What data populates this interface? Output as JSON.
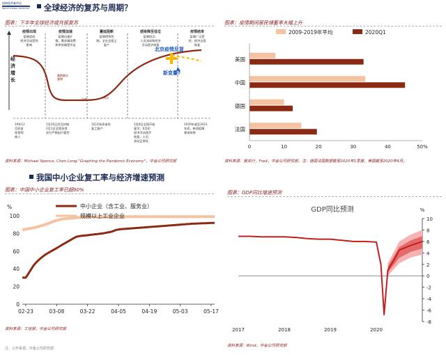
{
  "logo": {
    "line1": "机构投资者评论",
    "line2": "INSTITUTIONAL INVESTOR"
  },
  "sections": {
    "top": "全球经济的复苏与周期？",
    "bottom": "我国中小企业复工率与经济增速预测"
  },
  "panel1": {
    "subtitle": "图表：下半年全球经济或共振复苏",
    "y_label": "经济增长",
    "stages": [
      {
        "title": "疫情出现",
        "desc": "疫情造成\n经济活动受到\n影响"
      },
      {
        "title": "疫情加速",
        "desc": "疫情迅速扩\n散，需求端消费\n和供给端受冲击"
      },
      {
        "title": "蔓延阻断",
        "desc": "疫情得到控\n制，全社会复工\n复产"
      },
      {
        "title": "感染降至低位",
        "desc": "疫情拐点，\n人员流动和经济\n活动逐步恢复"
      },
      {
        "title": "疫情结束",
        "desc": "疫情广泛受\n控，经济全面\n恢复"
      }
    ],
    "annotations": [
      "美欧确诊\n激增",
      "见底",
      "拐点",
      "北京疫情反复",
      "新变量?"
    ],
    "events": [
      "19年12\n月初出\n现首例\n病人",
      "1月20日武汉封城\n2月1日全国多地\n实行严格出行管控",
      "3月开始多省份\n复工复产",
      "5月8日全国开始\n复学，6月初\n经济活动逐步\n恢复，人员\n流动正常化",
      "2020年或至2021\n年初，新冠疫情\n基本结束"
    ],
    "source": "资料来源：Michael Spence, Chen Long,\"Graphing the Pandemic Economy\"，中金公司研究部"
  },
  "panel2": {
    "subtitle": "图表：疫情期间居民储蓄率大幅上升",
    "source": "资料来源：致央行，Fred，中金公司研究部，注：德国法国数据截至2020年1季度，美国截至2020年4月。",
    "colors": {
      "avg": "#f5c3a2",
      "q1": "#8b2a12"
    }
  },
  "panel3": {
    "subtitle": "图表：中国中小企业复工率已超90%",
    "source": "资料来源：工信部，中金公司研究部",
    "colors": {
      "sme": "#8b2a12",
      "large": "#f5c3a2"
    }
  },
  "panel4": {
    "subtitle": "图表：GDP同比增速预测",
    "source": "资料来源：Wind，中金公司研究部",
    "colors": {
      "line": "#c21e1e",
      "band1": "#f7b3b3",
      "band2": "#e46a6a"
    }
  },
  "footer": "注：公开来源，中金公司研究部",
  "chart_data": [
    {
      "type": "bar",
      "orientation": "horizontal",
      "categories": [
        "美国",
        "中国",
        "德国",
        "法国"
      ],
      "series": [
        {
          "name": "2009-2019年平均",
          "values": [
            7.5,
            33.5,
            10,
            15
          ]
        },
        {
          "name": "2020Q1",
          "values": [
            33,
            45,
            12.5,
            19.5
          ]
        }
      ],
      "xlim": [
        0,
        50
      ],
      "x_ticks": [
        0,
        10,
        20,
        30,
        40,
        50
      ],
      "x_tick_labels": [
        "0",
        "10",
        "20",
        "30",
        "40",
        "50%"
      ],
      "legend": "top"
    },
    {
      "type": "line",
      "ylabel": "%",
      "x_tick_labels": [
        "02-23",
        "03-08",
        "03-22",
        "04-05",
        "04-19",
        "05-03",
        "05-17"
      ],
      "y_ticks": [
        0,
        20,
        40,
        60,
        80,
        100
      ],
      "ylim": [
        0,
        100
      ],
      "series": [
        {
          "name": "中小企业（含工业、服务业）",
          "x": [
            0,
            0.5,
            1,
            1.5,
            2,
            3,
            4,
            5,
            6,
            7,
            8,
            9,
            10,
            11,
            12,
            13,
            14,
            15,
            16,
            17,
            18,
            19,
            20,
            21,
            22,
            23,
            24,
            24.5,
            25,
            26,
            27,
            28,
            29,
            30,
            31,
            32,
            33,
            34,
            35,
            36,
            37,
            38,
            39,
            40,
            41,
            42,
            43,
            44,
            45,
            46,
            47,
            48,
            49,
            50,
            51,
            52,
            53,
            54,
            55,
            56,
            57,
            58,
            59,
            60,
            61,
            62,
            63,
            64,
            65,
            66,
            67,
            68,
            69,
            70,
            71,
            72,
            73,
            74,
            75,
            76,
            77,
            78,
            79,
            80,
            81,
            82,
            83,
            84
          ],
          "values": [
            30,
            30,
            30,
            30,
            32,
            36,
            40,
            44,
            47,
            49.5,
            52,
            54,
            56,
            57.5,
            59,
            60.5,
            62,
            63.5,
            65,
            66.5,
            68,
            69.5,
            71,
            72.5,
            74,
            75.5,
            76.5,
            76.8,
            77,
            77.3,
            77.6,
            77.9,
            78.2,
            78.5,
            78.8,
            79.1,
            79.4,
            79.7,
            80,
            80.5,
            81,
            81.5,
            82,
            83,
            84,
            84.5,
            84.8,
            85,
            85.2,
            85.4,
            85.6,
            85.8,
            86,
            86.2,
            86.4,
            86.6,
            86.8,
            87,
            87.2,
            87.4,
            87.6,
            87.8,
            88,
            88.2,
            88.4,
            88.6,
            88.8,
            89,
            89.2,
            89.4,
            89.6,
            89.8,
            90,
            90.2,
            90.4,
            90.6,
            90.8,
            91,
            91.1,
            91.2,
            91.3,
            91.4,
            91.5,
            91.6,
            91.7,
            91.8,
            91.9,
            92
          ]
        },
        {
          "name": "规模以上工业企业",
          "x": [
            0,
            2,
            4,
            6,
            8,
            10,
            12,
            14,
            16,
            18,
            20,
            22,
            24,
            26,
            28,
            30,
            32,
            34,
            36,
            40,
            44,
            48,
            52,
            56,
            60,
            64,
            68,
            72,
            76,
            80,
            84
          ],
          "values": [
            84,
            85,
            86,
            87,
            88.5,
            90,
            92,
            94,
            95.5,
            96.5,
            97,
            97.5,
            98,
            98.3,
            98.5,
            98.7,
            98.9,
            99,
            99,
            99,
            99,
            99,
            99,
            99,
            99,
            99,
            99,
            99,
            99,
            99,
            99
          ]
        }
      ],
      "legend": "top-left"
    },
    {
      "type": "line",
      "title": "GDP同比预测",
      "ylabel": "%",
      "x_tick_labels": [
        "2017",
        "2018",
        "2019",
        "2020"
      ],
      "y_ticks": [
        -8,
        -6,
        -4,
        -2,
        0,
        2,
        4,
        6,
        8,
        10
      ],
      "ylim": [
        -8,
        10
      ],
      "series": [
        {
          "name": "GDP同比",
          "x": [
            2017.0,
            2017.25,
            2017.5,
            2017.75,
            2018.0,
            2018.25,
            2018.5,
            2018.75,
            2019.0,
            2019.25,
            2019.5,
            2019.75,
            2020.0,
            2020.1,
            2020.17,
            2020.25,
            2020.4,
            2020.5,
            2020.75,
            2021.0
          ],
          "values": [
            6.9,
            6.9,
            6.8,
            6.8,
            6.8,
            6.7,
            6.5,
            6.4,
            6.4,
            6.2,
            6.0,
            6.0,
            5.9,
            2.0,
            -6.8,
            1.0,
            3.0,
            4.5,
            5.3,
            6.0
          ]
        }
      ],
      "band": {
        "x": [
          2020.25,
          2020.5,
          2020.75,
          2021.0
        ],
        "low": [
          0.0,
          2.2,
          3.2,
          3.7
        ],
        "high": [
          2.2,
          6.0,
          7.2,
          8.0
        ]
      }
    }
  ]
}
